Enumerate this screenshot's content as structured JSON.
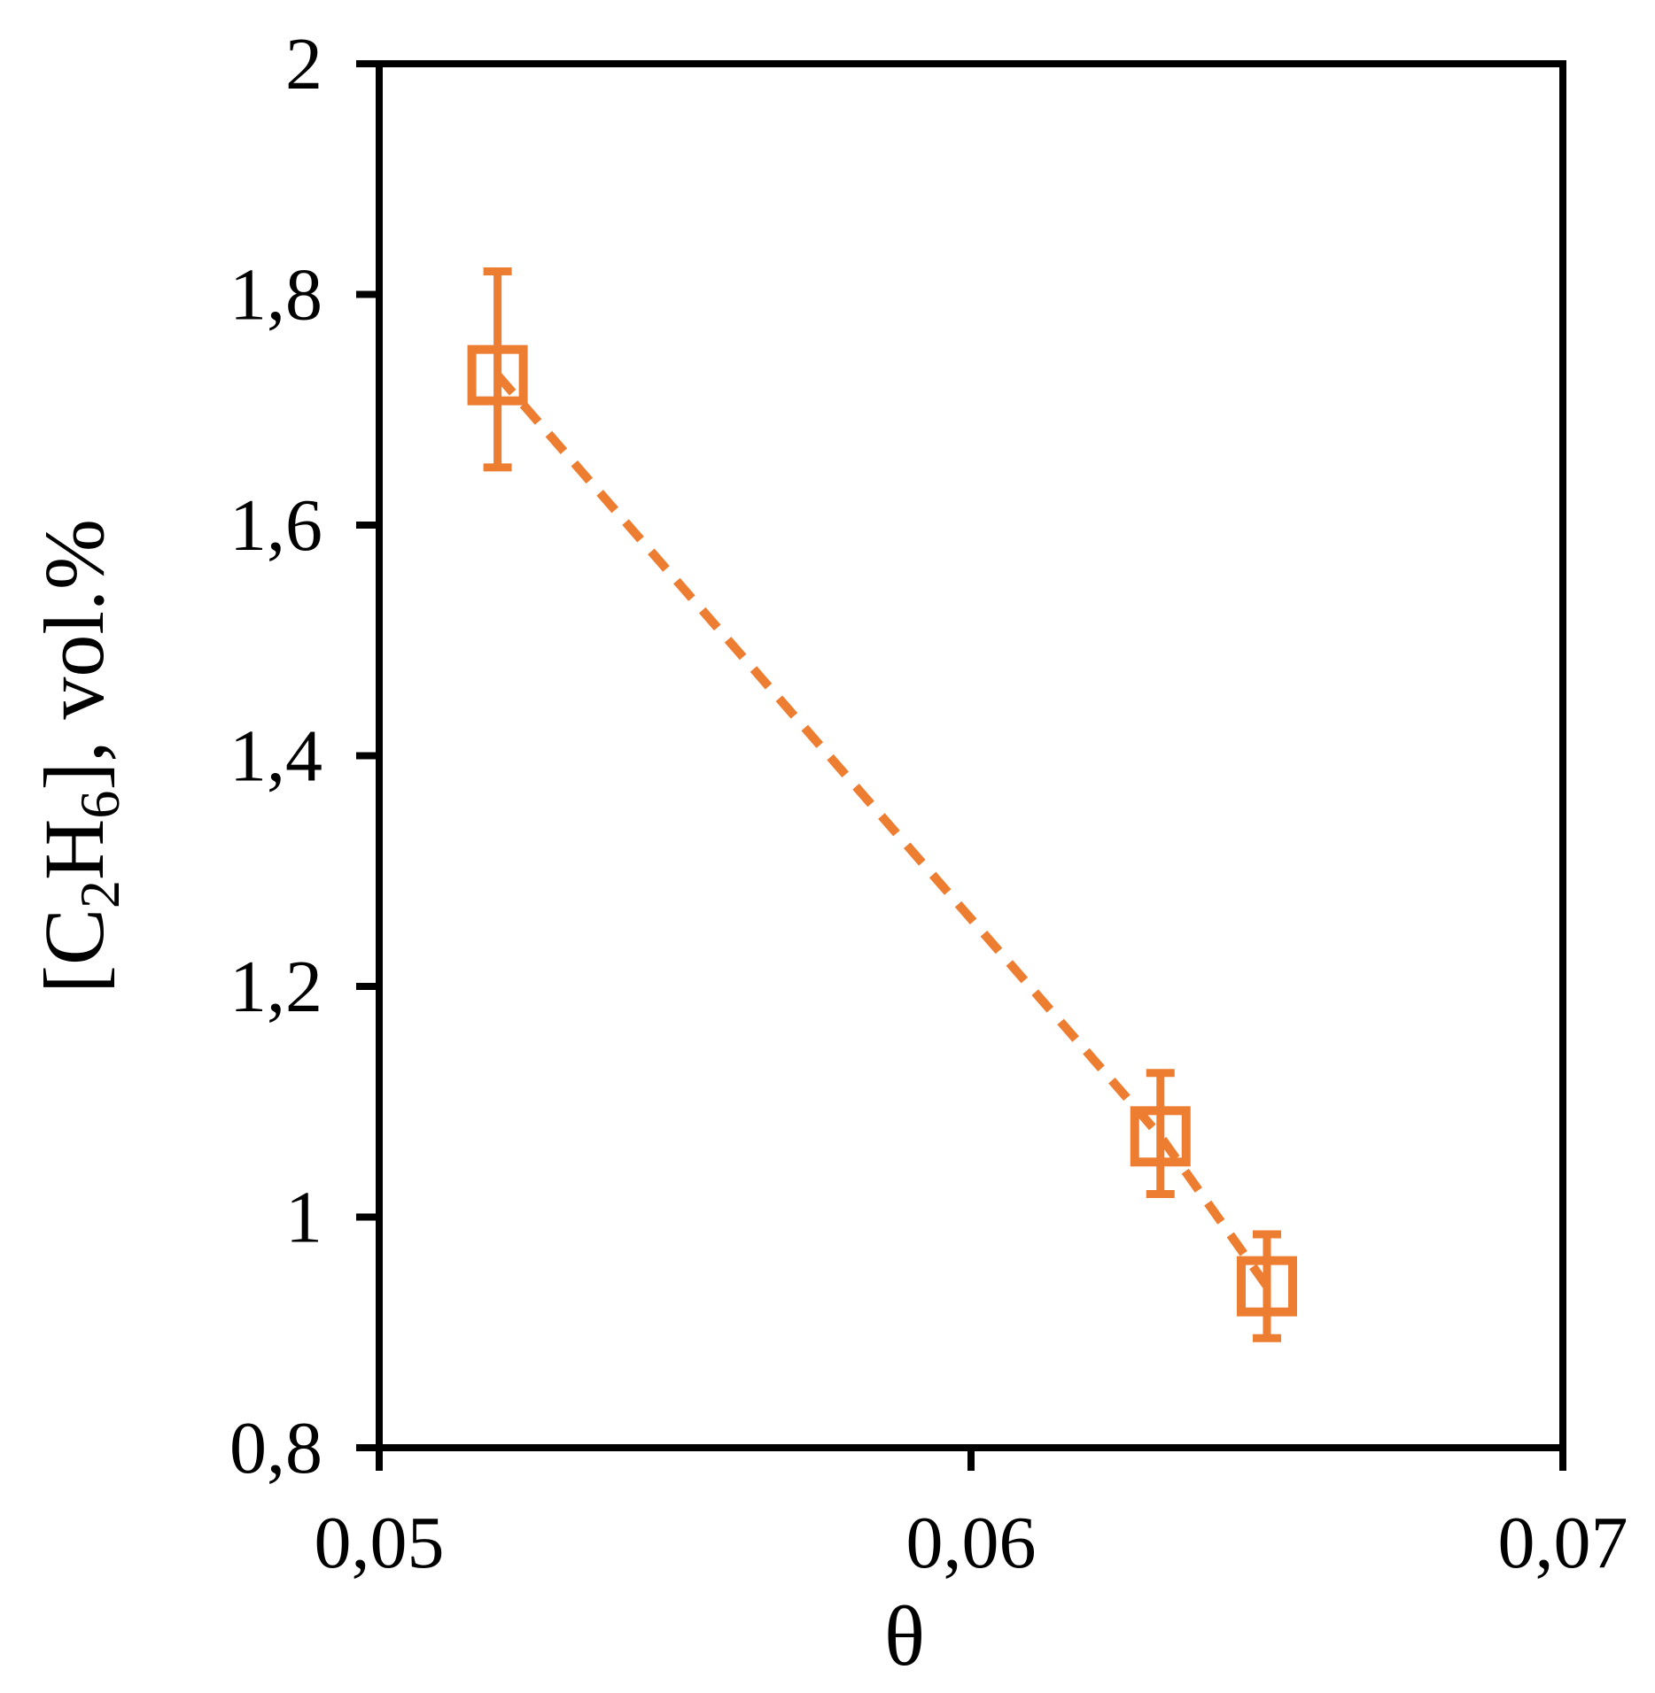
{
  "chart_data": {
    "type": "scatter",
    "title": "",
    "xlabel": "θ",
    "ylabel": {
      "prefix": "[C",
      "sub1": "2",
      "mid": "H",
      "sub2": "6",
      "suffix": "], vol.%"
    },
    "xlim": [
      0.05,
      0.07
    ],
    "ylim": [
      0.8,
      2.0
    ],
    "x_ticks": [
      {
        "value": 0.05,
        "label": "0,05"
      },
      {
        "value": 0.06,
        "label": "0,06"
      },
      {
        "value": 0.07,
        "label": "0,07"
      }
    ],
    "y_ticks": [
      {
        "value": 0.8,
        "label": "0,8"
      },
      {
        "value": 1.0,
        "label": "1"
      },
      {
        "value": 1.2,
        "label": "1,2"
      },
      {
        "value": 1.4,
        "label": "1,4"
      },
      {
        "value": 1.6,
        "label": "1,6"
      },
      {
        "value": 1.8,
        "label": "1,8"
      },
      {
        "value": 2.0,
        "label": "2"
      }
    ],
    "grid": false,
    "legend": "none",
    "series": [
      {
        "color": "#ED7D31",
        "marker": "open-square",
        "trendline": "dashed",
        "points": [
          {
            "x": 0.052,
            "y": 1.73,
            "err_low": 1.65,
            "err_high": 1.82
          },
          {
            "x": 0.0632,
            "y": 1.07,
            "err_low": 1.02,
            "err_high": 1.125
          },
          {
            "x": 0.065,
            "y": 0.94,
            "err_low": 0.895,
            "err_high": 0.985
          }
        ]
      }
    ]
  }
}
